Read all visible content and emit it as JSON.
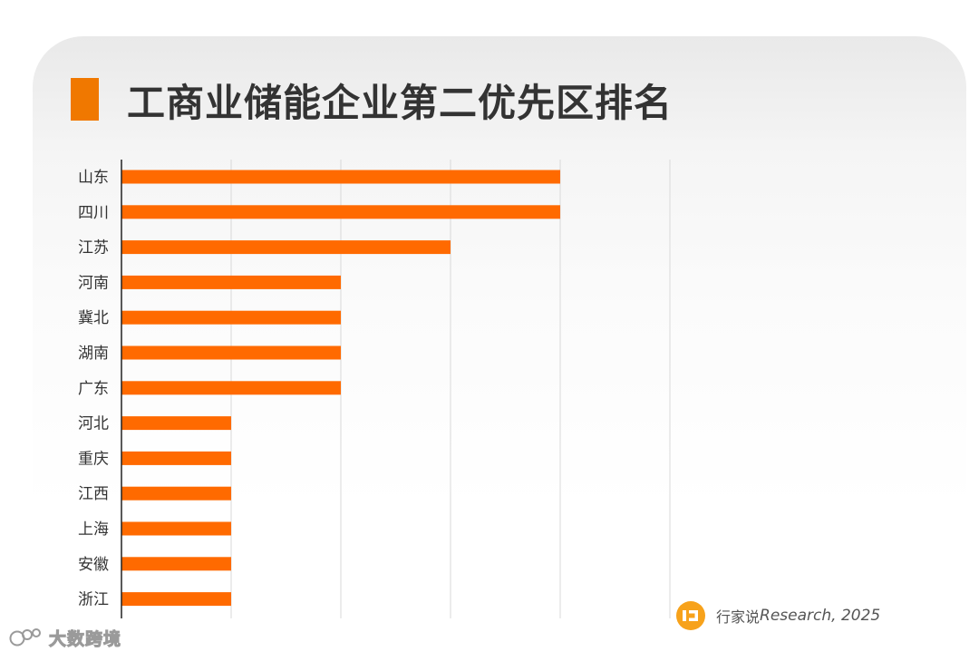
{
  "title": "工商业储能企业第二优先区排名",
  "source": {
    "cn": "行家说",
    "en": "Research, 2025"
  },
  "watermark": "大数跨境",
  "colors": {
    "bar": "#ff6a00",
    "title_marker": "#f07800",
    "grid": "#d9d9d9",
    "axis": "#222222",
    "logo": "#f7a21b"
  },
  "icons": {
    "source_logo": "hangjiashuo-logo-icon",
    "watermark_logo": "dashukuajing-logo-icon"
  },
  "chart_data": {
    "type": "bar",
    "orientation": "horizontal",
    "categories": [
      "山东",
      "四川",
      "江苏",
      "河南",
      "冀北",
      "湖南",
      "广东",
      "河北",
      "重庆",
      "江西",
      "上海",
      "安徽",
      "浙江"
    ],
    "values": [
      4,
      4,
      3,
      2,
      2,
      2,
      2,
      1,
      1,
      1,
      1,
      1,
      1
    ],
    "xlim": [
      0,
      5
    ],
    "grid": true,
    "tick_labels_shown": false
  }
}
